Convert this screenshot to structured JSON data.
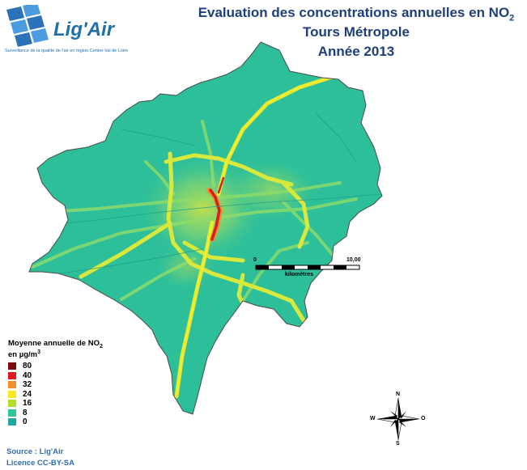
{
  "logo": {
    "name": "Lig'Air",
    "tagline": "Surveillance de la qualité de l'air en région Centre-Val de Loire"
  },
  "title": {
    "line1": "Evaluation des concentrations annuelles en NO",
    "line1_sub": "2",
    "line2": "Tours Métropole",
    "line3": "Année 2013"
  },
  "legend": {
    "title_line1": "Moyenne annuelle de NO",
    "title_line1_sub": "2",
    "title_line2": "en µg/m",
    "title_line2_sup": "3",
    "classes": [
      {
        "label": "80",
        "color": "#7a0c0c"
      },
      {
        "label": "40",
        "color": "#e31a1c"
      },
      {
        "label": "32",
        "color": "#f28e2b"
      },
      {
        "label": "24",
        "color": "#fde725"
      },
      {
        "label": "16",
        "color": "#b5de2b"
      },
      {
        "label": "8",
        "color": "#2fc59a"
      },
      {
        "label": "0",
        "color": "#20a8a0"
      }
    ]
  },
  "scale": {
    "start_label": "0",
    "end_label": "10,00",
    "unit_label": "kilomètres"
  },
  "compass": {
    "north": "N",
    "south": "S",
    "east": "O",
    "west": "W"
  },
  "colors": {
    "background_field": "#2dbf9a",
    "road_major": "#e8e43a",
    "hotspot": "#d42020",
    "boundary": "#4a4a4a"
  },
  "credits": {
    "source": "Source : Lig'Air",
    "licence": "Licence CC-BY-SA"
  }
}
